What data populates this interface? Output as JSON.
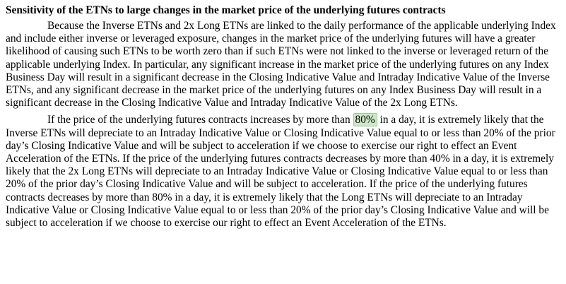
{
  "heading": "Sensitivity of the ETNs to large changes in the market price of the underlying futures contracts",
  "paragraph1": "Because the Inverse ETNs and 2x Long ETNs are linked to the daily performance of the applicable underlying Index and include either inverse or leveraged exposure, changes in the market price of the underlying futures will have a greater likelihood of causing such ETNs to be worth zero than if such ETNs were not linked to the inverse or leveraged return of the applicable underlying Index. In particular, any significant increase in the market price of the underlying futures on any Index Business Day will result in a significant decrease in the Closing Indicative Value and Intraday Indicative Value of the Inverse ETNs, and any significant decrease in the market price of the underlying futures on any Index Business Day will result in a significant decrease in the Closing Indicative Value and Intraday Indicative Value of the 2x Long ETNs.",
  "paragraph2": {
    "before": "If the price of the underlying futures contracts increases by more than ",
    "highlight": "80%",
    "after": " in a day, it is extremely likely that the Inverse ETNs will depreciate to an Intraday Indicative Value or Closing Indicative Value equal to or less than 20% of the prior day’s Closing Indicative Value and will be subject to acceleration if we choose to exercise our right to effect an Event Acceleration of the ETNs. If the price of the underlying futures contracts decreases by more than 40% in a day, it is extremely likely that the 2x Long ETNs will depreciate to an Intraday Indicative Value or Closing Indicative Value equal to or less than 20% of the prior day’s Closing Indicative Value and will be subject to acceleration. If the price of the underlying futures contracts decreases by more than 80% in a day, it is extremely likely that the Long ETNs will depreciate to an Intraday Indicative Value or Closing Indicative Value equal to or less than 20% of the prior day’s Closing Indicative Value and will be subject to acceleration if we choose to exercise our right to effect an Event Acceleration of the ETNs."
  },
  "colors": {
    "highlight_background": "#cfe7c9",
    "highlight_border": "#9bc79a",
    "text": "#000000"
  }
}
